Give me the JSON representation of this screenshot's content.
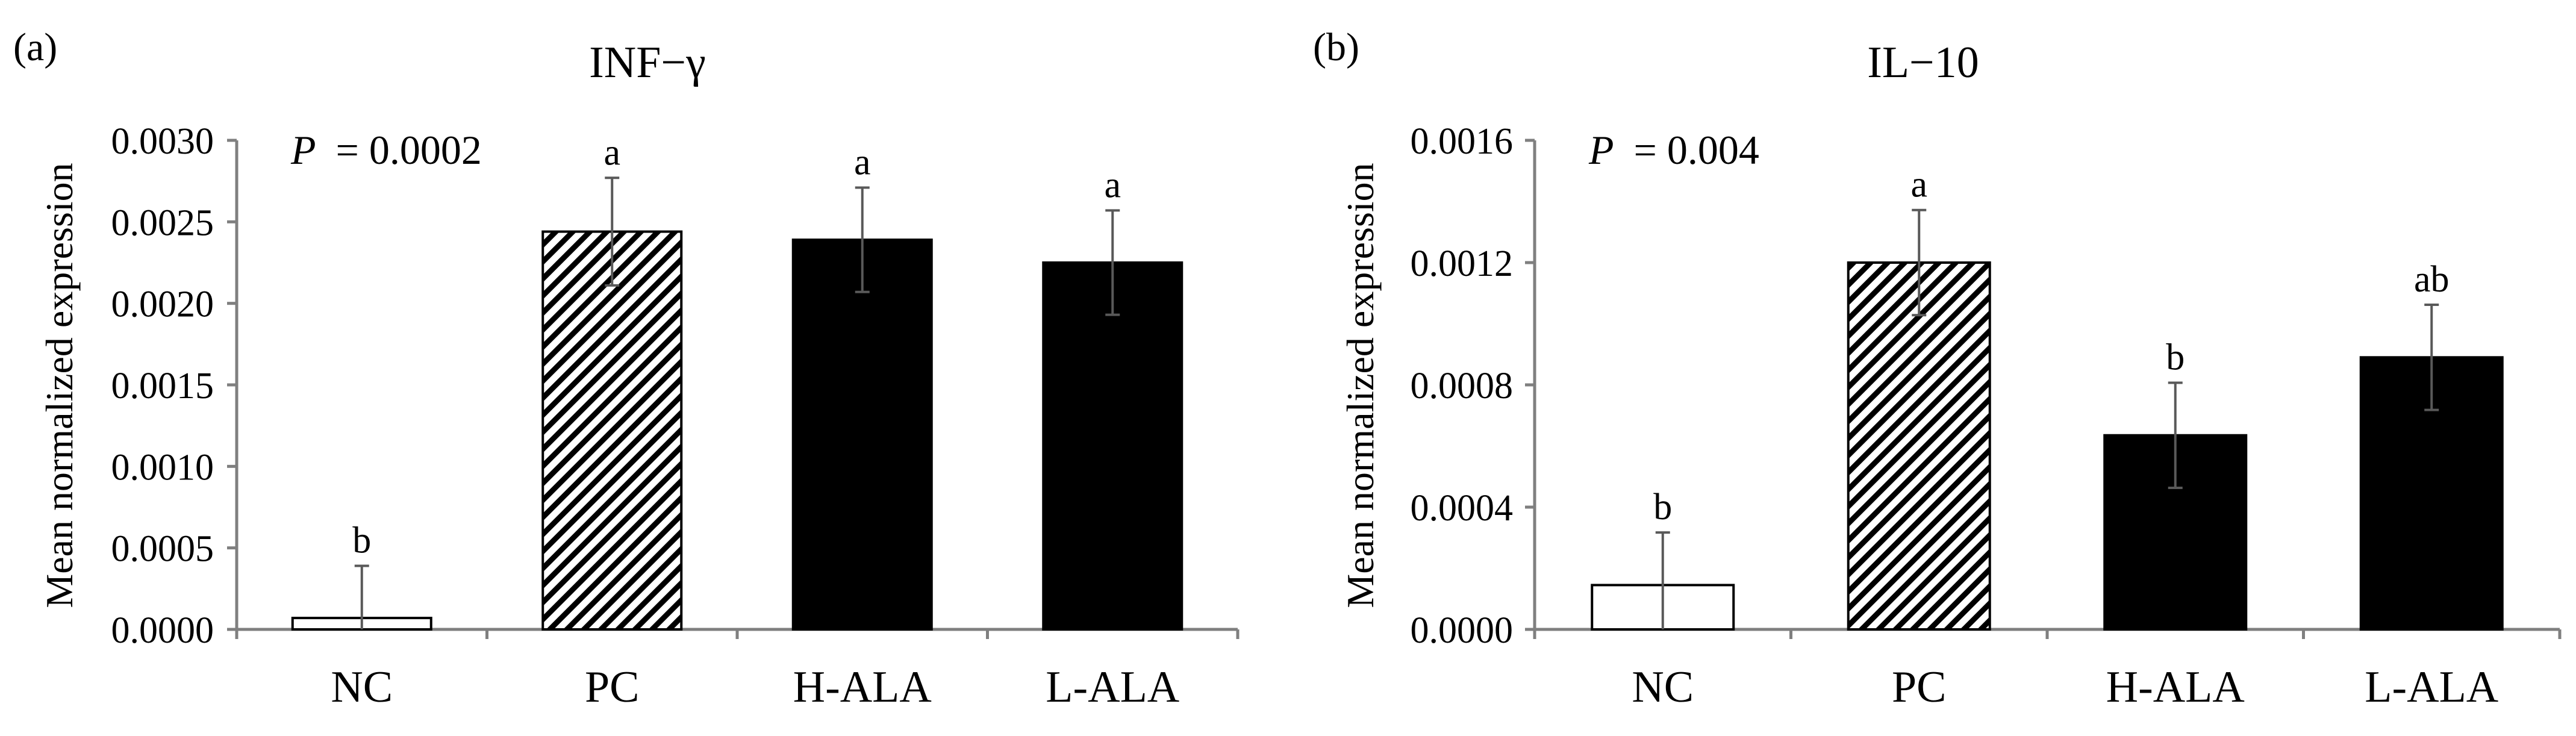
{
  "colors": {
    "axis": "#7f7f7f",
    "text": "#000000",
    "solid_bar": "#000000",
    "open_bar": "#ffffff",
    "error_bar": "#595959"
  },
  "chart_data": [
    {
      "type": "bar",
      "panel_label": "(a)",
      "title": "INF−γ",
      "xlabel": "",
      "ylabel": "Mean normalized expression",
      "p_label": "P",
      "p_value": "= 0.0002",
      "categories": [
        "NC",
        "PC",
        "H-ALA",
        "L-ALA"
      ],
      "values": [
        7e-05,
        0.00244,
        0.00239,
        0.00225
      ],
      "errors": [
        0.00032,
        0.00033,
        0.00032,
        0.00032
      ],
      "significance": [
        "b",
        "a",
        "a",
        "a"
      ],
      "fills": [
        "open",
        "hatched",
        "solid",
        "solid"
      ],
      "ylim": [
        0,
        0.003
      ],
      "yticks": [
        "0.0000",
        "0.0005",
        "0.0010",
        "0.0015",
        "0.0020",
        "0.0025",
        "0.0030"
      ],
      "grid": false,
      "legend": "none"
    },
    {
      "type": "bar",
      "panel_label": "(b)",
      "title": "IL−10",
      "xlabel": "",
      "ylabel": "Mean normalized expression",
      "p_label": "P",
      "p_value": "= 0.004",
      "categories": [
        "NC",
        "PC",
        "H-ALA",
        "L-ALA"
      ],
      "values": [
        0.000145,
        0.0012,
        0.000635,
        0.00089
      ],
      "errors": [
        0.000172,
        0.000172,
        0.000172,
        0.000172
      ],
      "significance": [
        "b",
        "a",
        "b",
        "ab"
      ],
      "fills": [
        "open",
        "hatched",
        "solid",
        "solid"
      ],
      "ylim": [
        0,
        0.0016
      ],
      "yticks": [
        "0.0000",
        "0.0004",
        "0.0008",
        "0.0012",
        "0.0016"
      ],
      "grid": false,
      "legend": "none"
    }
  ]
}
